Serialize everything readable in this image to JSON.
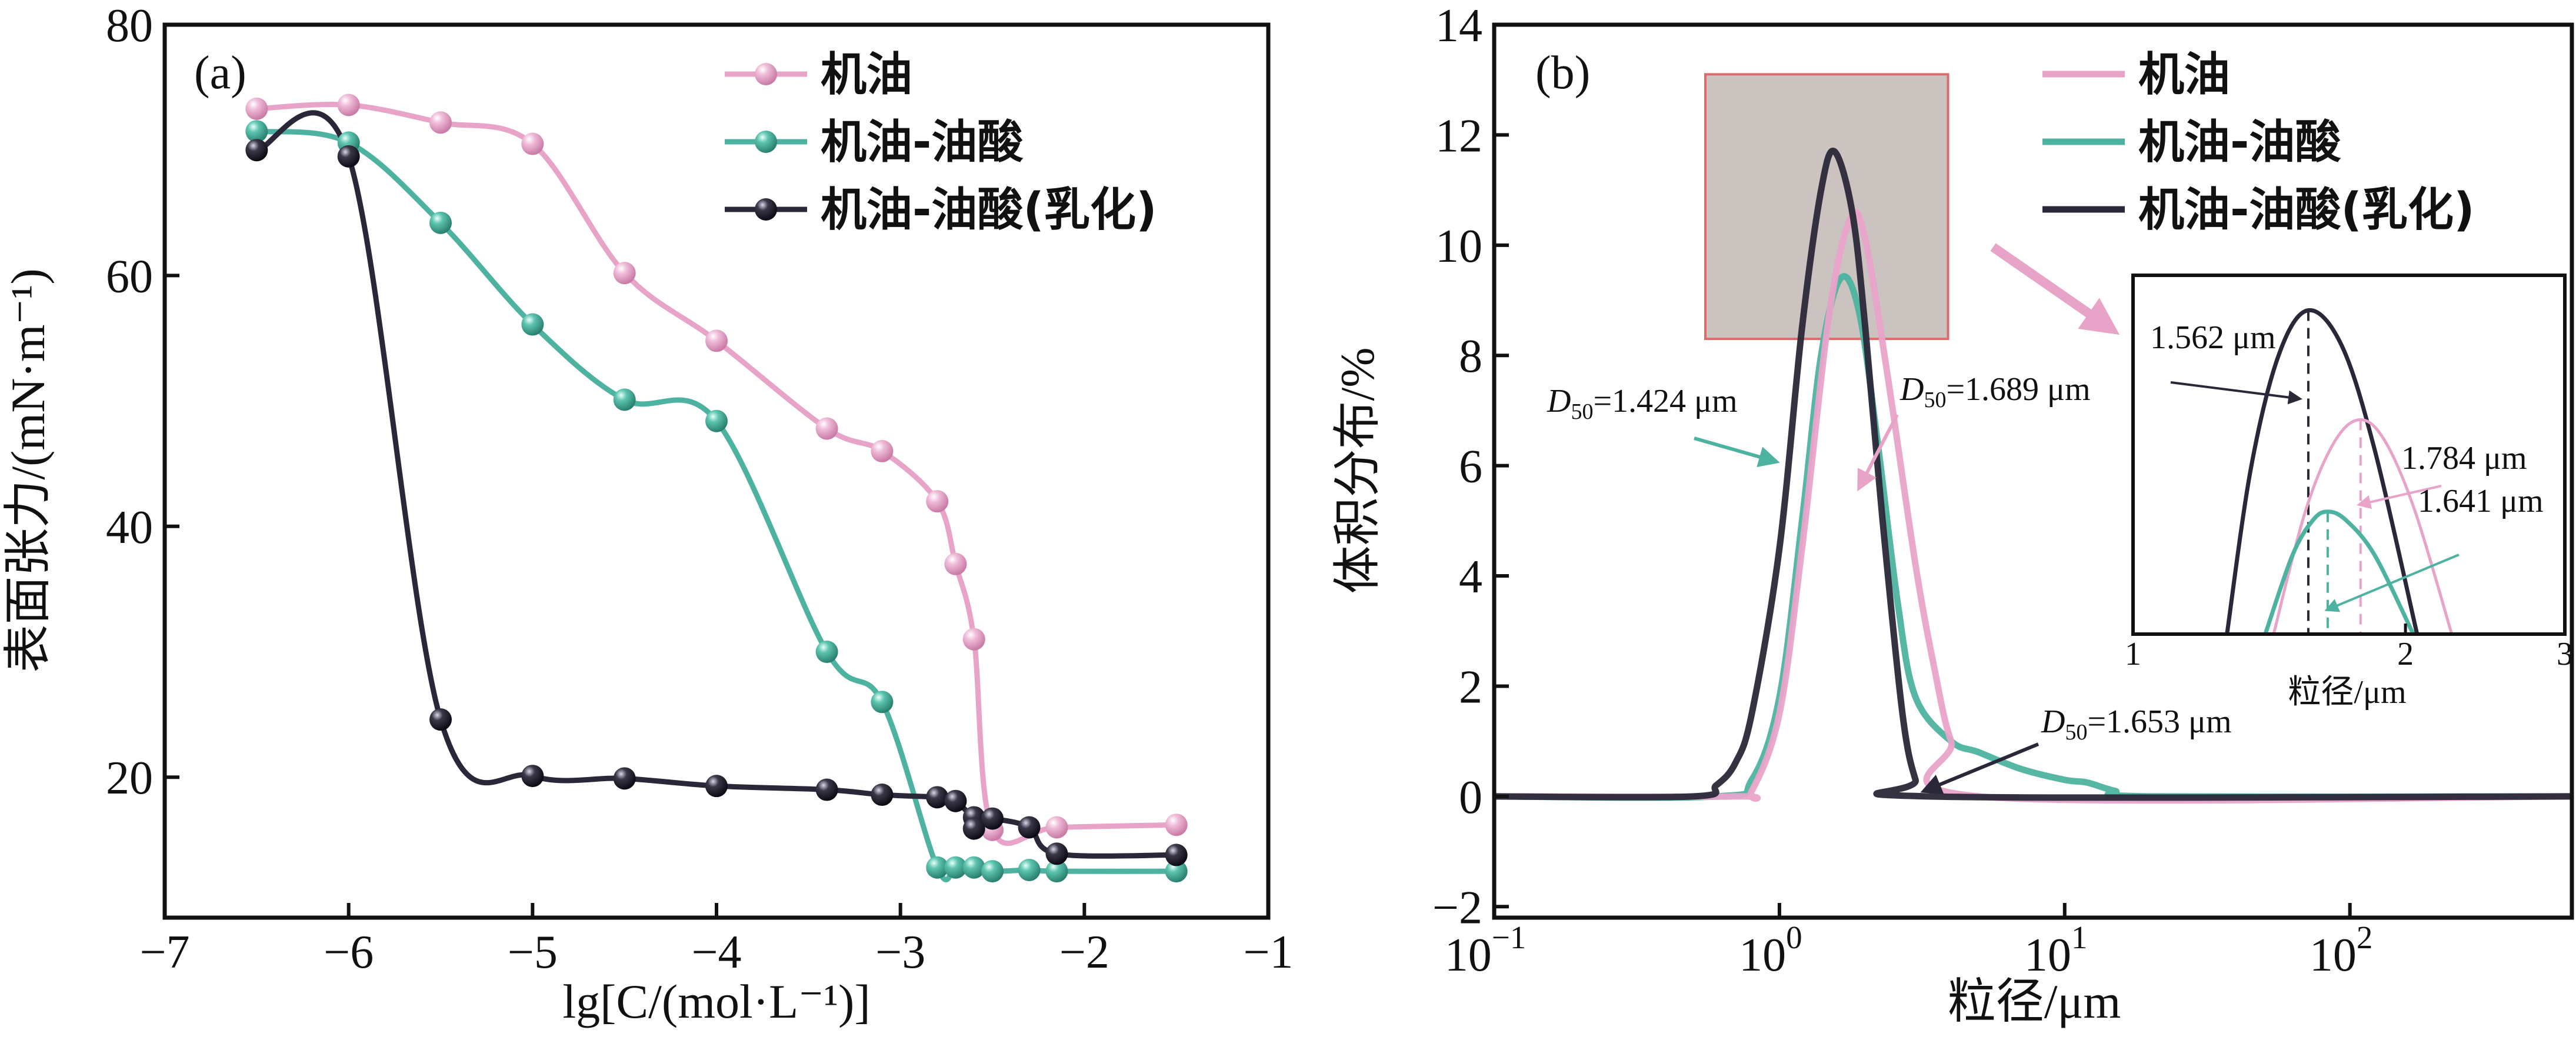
{
  "chart_data": [
    {
      "panel": "(a)",
      "type": "line",
      "xlabel": "lg[C/(mol·L⁻¹)]",
      "ylabel": "表面张力/(mN·m⁻¹)",
      "xlim": [
        -7,
        -1
      ],
      "ylim": [
        8.8,
        80
      ],
      "xticks": [
        "−7",
        "−6",
        "−5",
        "−4",
        "−3",
        "−2",
        "−1"
      ],
      "yticks": [
        "20",
        "40",
        "60",
        "80"
      ],
      "legend_placement": "top-right",
      "series": [
        {
          "name": "机油",
          "color": "#e8a3c9",
          "points": [
            [
              -6.5,
              73.3
            ],
            [
              -6,
              73.6
            ],
            [
              -5.5,
              72.2
            ],
            [
              -5,
              70.5
            ],
            [
              -4.5,
              60.2
            ],
            [
              -4,
              54.8
            ],
            [
              -3.4,
              47.8
            ],
            [
              -3.1,
              46
            ],
            [
              -2.8,
              42
            ],
            [
              -2.7,
              37
            ],
            [
              -2.6,
              31
            ],
            [
              -2.5,
              15.8
            ],
            [
              -2.15,
              16
            ],
            [
              -1.5,
              16.2
            ]
          ]
        },
        {
          "name": "机油-油酸",
          "color": "#4db3a0",
          "points": [
            [
              -6.5,
              71.5
            ],
            [
              -6,
              70.6
            ],
            [
              -5.5,
              64.2
            ],
            [
              -5,
              56.1
            ],
            [
              -4.5,
              50.1
            ],
            [
              -4,
              48.4
            ],
            [
              -3.4,
              30
            ],
            [
              -3.1,
              26
            ],
            [
              -2.8,
              12.8
            ],
            [
              -2.7,
              12.8
            ],
            [
              -2.6,
              12.8
            ],
            [
              -2.5,
              12.5
            ],
            [
              -2.3,
              12.6
            ],
            [
              -2.15,
              12.5
            ],
            [
              -1.5,
              12.5
            ]
          ]
        },
        {
          "name": "机油-油酸(乳化)",
          "color": "#2a2838",
          "points": [
            [
              -6.5,
              70
            ],
            [
              -6,
              69.5
            ],
            [
              -5.5,
              24.6
            ],
            [
              -5,
              20.1
            ],
            [
              -4.5,
              19.9
            ],
            [
              -4,
              19.3
            ],
            [
              -3.4,
              19
            ],
            [
              -3.1,
              18.6
            ],
            [
              -2.8,
              18.4
            ],
            [
              -2.7,
              18.1
            ],
            [
              -2.6,
              16.8
            ],
            [
              -2.6,
              15.9
            ],
            [
              -2.5,
              16.7
            ],
            [
              -2.3,
              16
            ],
            [
              -2.15,
              13.9
            ],
            [
              -1.5,
              13.8
            ]
          ]
        }
      ]
    },
    {
      "panel": "(b)",
      "type": "line",
      "xscale": "log",
      "xlabel": "粒径/μm",
      "ylabel": "体积分布/%",
      "xlim": [
        0.1,
        600
      ],
      "ylim": [
        -2.2,
        14
      ],
      "xticks": [
        {
          "base": "10",
          "exp": "−1",
          "value": 0.1
        },
        {
          "base": "10",
          "exp": "0",
          "value": 1
        },
        {
          "base": "10",
          "exp": "1",
          "value": 10
        },
        {
          "base": "10",
          "exp": "2",
          "value": 100
        }
      ],
      "yticks": [
        "−2",
        "0",
        "2",
        "4",
        "6",
        "8",
        "10",
        "12",
        "14"
      ],
      "legend_placement": "top-right",
      "series": [
        {
          "name": "机油",
          "color": "#e8a3c9",
          "points": [
            [
              0.1,
              0
            ],
            [
              0.7,
              0
            ],
            [
              0.8,
              0.1
            ],
            [
              1.0,
              1.5
            ],
            [
              1.2,
              4.5
            ],
            [
              1.5,
              8.8
            ],
            [
              1.78,
              10.5
            ],
            [
              2.0,
              10.1
            ],
            [
              2.4,
              7.6
            ],
            [
              3.0,
              4.2
            ],
            [
              3.5,
              2.3
            ],
            [
              4.0,
              1.0
            ],
            [
              5,
              0
            ],
            [
              600,
              0
            ]
          ]
        },
        {
          "name": "机油-油酸",
          "color": "#4db3a0",
          "points": [
            [
              0.1,
              0
            ],
            [
              0.6,
              0
            ],
            [
              0.8,
              0.3
            ],
            [
              1.0,
              1.8
            ],
            [
              1.2,
              5
            ],
            [
              1.4,
              8
            ],
            [
              1.64,
              9.4
            ],
            [
              1.9,
              8.8
            ],
            [
              2.2,
              6.5
            ],
            [
              2.6,
              3.5
            ],
            [
              3.0,
              1.8
            ],
            [
              4,
              1.0
            ],
            [
              5,
              0.8
            ],
            [
              7,
              0.5
            ],
            [
              10,
              0.3
            ],
            [
              12,
              0.25
            ],
            [
              15,
              0.1
            ],
            [
              20,
              0
            ],
            [
              600,
              0
            ]
          ]
        },
        {
          "name": "机油-油酸(乳化)",
          "color": "#2a2838",
          "points": [
            [
              0.1,
              0
            ],
            [
              0.5,
              0
            ],
            [
              0.6,
              0.2
            ],
            [
              0.7,
              0.6
            ],
            [
              0.8,
              1.5
            ],
            [
              1.0,
              4.5
            ],
            [
              1.2,
              8.5
            ],
            [
              1.4,
              11.0
            ],
            [
              1.56,
              11.7
            ],
            [
              1.8,
              10.6
            ],
            [
              2.0,
              8.5
            ],
            [
              2.3,
              5
            ],
            [
              2.7,
              1.5
            ],
            [
              3.0,
              0.3
            ],
            [
              3.3,
              0
            ],
            [
              600,
              0
            ]
          ]
        }
      ],
      "highlight_box": {
        "x": [
          0.55,
          3.9
        ],
        "y": [
          8.3,
          13.1
        ],
        "fill": "#cbc3bf",
        "stroke": "#e06a6a"
      },
      "annotations": [
        {
          "series": "机油-油酸",
          "label_sub": "50",
          "label_main": "D",
          "text": "=1.424 μm"
        },
        {
          "series": "机油",
          "label_sub": "50",
          "label_main": "D",
          "text": "=1.689 μm"
        },
        {
          "series": "机油-油酸(乳化)",
          "label_sub": "50",
          "label_main": "D",
          "text": "=1.653 μm"
        }
      ],
      "inset": {
        "xscale": "log",
        "xlim": [
          1,
          3
        ],
        "ylim": [
          8,
          12.1
        ],
        "xticks": [
          "1",
          "2",
          "3"
        ],
        "xlabel": "粒径/μm",
        "series": [
          {
            "name": "机油-油酸(乳化)",
            "color": "#2a2838",
            "peak_x": 1.562,
            "label": "1.562 μm",
            "points": [
              [
                1.27,
                8
              ],
              [
                1.35,
                9.9
              ],
              [
                1.45,
                11.2
              ],
              [
                1.562,
                11.7
              ],
              [
                1.7,
                11.3
              ],
              [
                1.85,
                10.1
              ],
              [
                2.06,
                8
              ]
            ]
          },
          {
            "name": "机油",
            "color": "#e8a3c9",
            "peak_x": 1.784,
            "label": "1.784 μm",
            "points": [
              [
                1.43,
                8
              ],
              [
                1.55,
                9.4
              ],
              [
                1.67,
                10.2
              ],
              [
                1.784,
                10.45
              ],
              [
                1.9,
                10.2
              ],
              [
                2.05,
                9.4
              ],
              [
                2.25,
                8
              ]
            ]
          },
          {
            "name": "机油-油酸",
            "color": "#4db3a0",
            "peak_x": 1.641,
            "label": "1.641 μm",
            "points": [
              [
                1.4,
                8
              ],
              [
                1.5,
                8.9
              ],
              [
                1.58,
                9.3
              ],
              [
                1.641,
                9.4
              ],
              [
                1.72,
                9.3
              ],
              [
                1.85,
                8.9
              ],
              [
                2.04,
                8
              ]
            ]
          }
        ]
      }
    }
  ]
}
